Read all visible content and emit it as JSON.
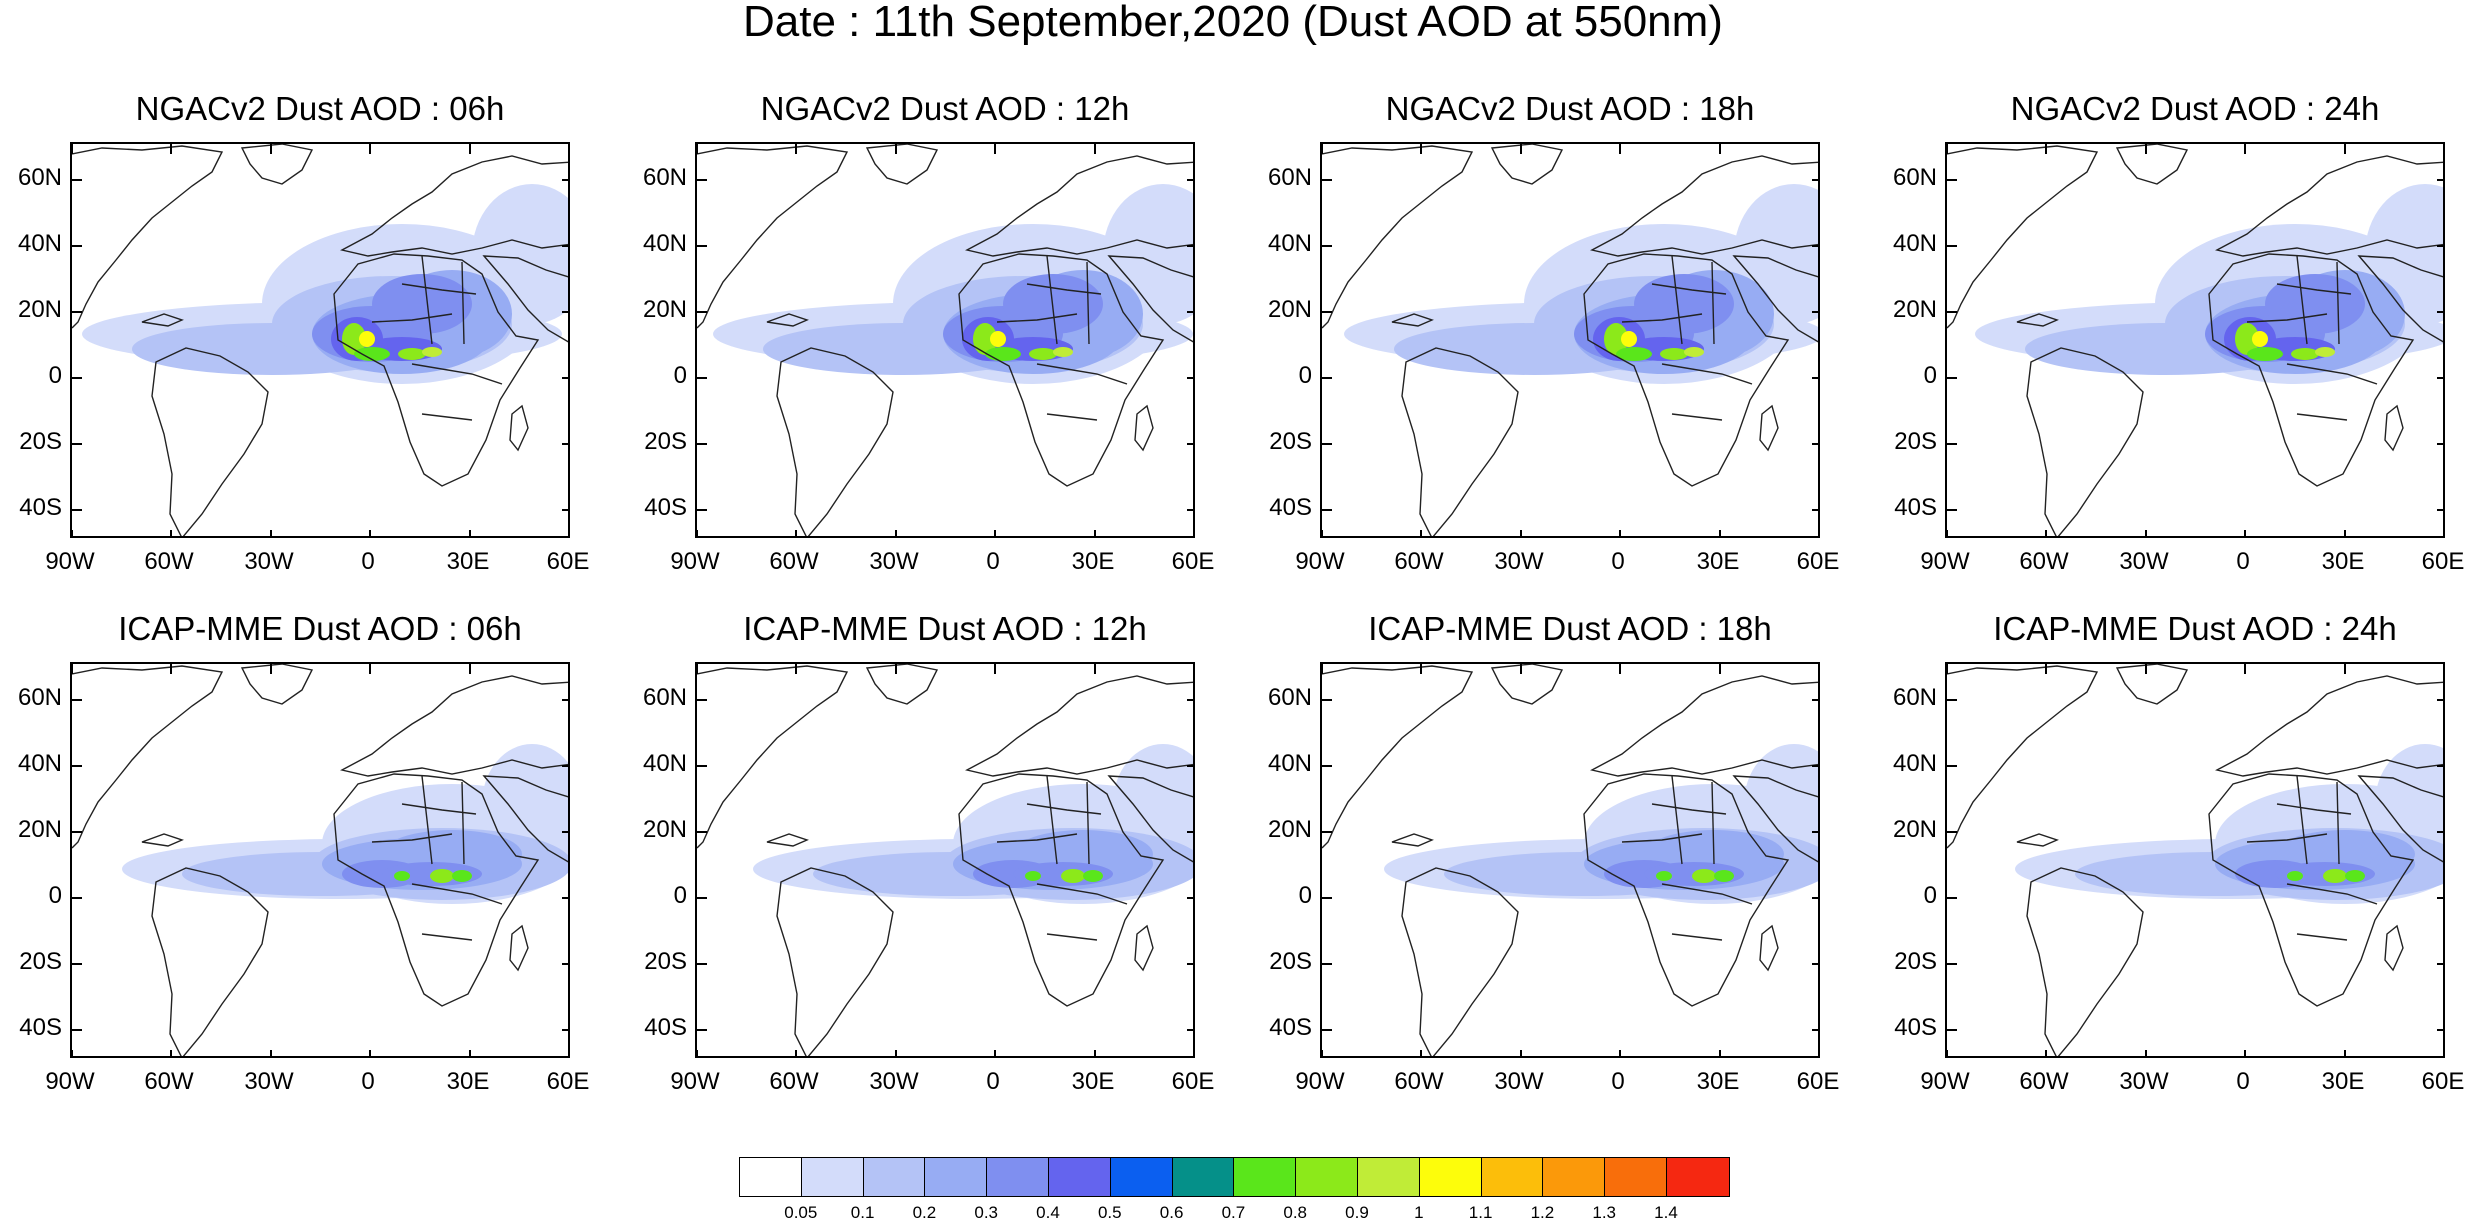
{
  "title": "Date : 11th September,2020 (Dust AOD at 550nm)",
  "panels": [
    {
      "title": "NGACv2 Dust AOD : 06h",
      "model": "NGACv2",
      "hour": "06h"
    },
    {
      "title": "NGACv2 Dust AOD : 12h",
      "model": "NGACv2",
      "hour": "12h"
    },
    {
      "title": "NGACv2 Dust AOD : 18h",
      "model": "NGACv2",
      "hour": "18h"
    },
    {
      "title": "NGACv2 Dust AOD : 24h",
      "model": "NGACv2",
      "hour": "24h"
    },
    {
      "title": "ICAP-MME Dust AOD : 06h",
      "model": "ICAP-MME",
      "hour": "06h"
    },
    {
      "title": "ICAP-MME Dust AOD : 12h",
      "model": "ICAP-MME",
      "hour": "12h"
    },
    {
      "title": "ICAP-MME Dust AOD : 18h",
      "model": "ICAP-MME",
      "hour": "18h"
    },
    {
      "title": "ICAP-MME Dust AOD : 24h",
      "model": "ICAP-MME",
      "hour": "24h"
    }
  ],
  "lat_ticks": [
    "60N",
    "40N",
    "20N",
    "0",
    "20S",
    "40S"
  ],
  "lon_ticks": [
    "90W",
    "60W",
    "30W",
    "0",
    "30E",
    "60E"
  ],
  "map_extent": {
    "lon": [
      -90,
      60
    ],
    "lat": [
      -50,
      70
    ]
  },
  "colorbar": {
    "labels": [
      "0.05",
      "0.1",
      "0.2",
      "0.3",
      "0.4",
      "0.5",
      "0.6",
      "0.7",
      "0.8",
      "0.9",
      "1",
      "1.1",
      "1.2",
      "1.3",
      "1.4"
    ],
    "colors": [
      "#ffffff",
      "#d3dcfa",
      "#b4c3f6",
      "#97acf3",
      "#7f8ff0",
      "#6464ee",
      "#0b5ff0",
      "#059089",
      "#5ae61b",
      "#8ce91a",
      "#c0ec37",
      "#fdfd0b",
      "#fcbe0a",
      "#fb990a",
      "#f86e0b",
      "#f52811"
    ]
  }
}
